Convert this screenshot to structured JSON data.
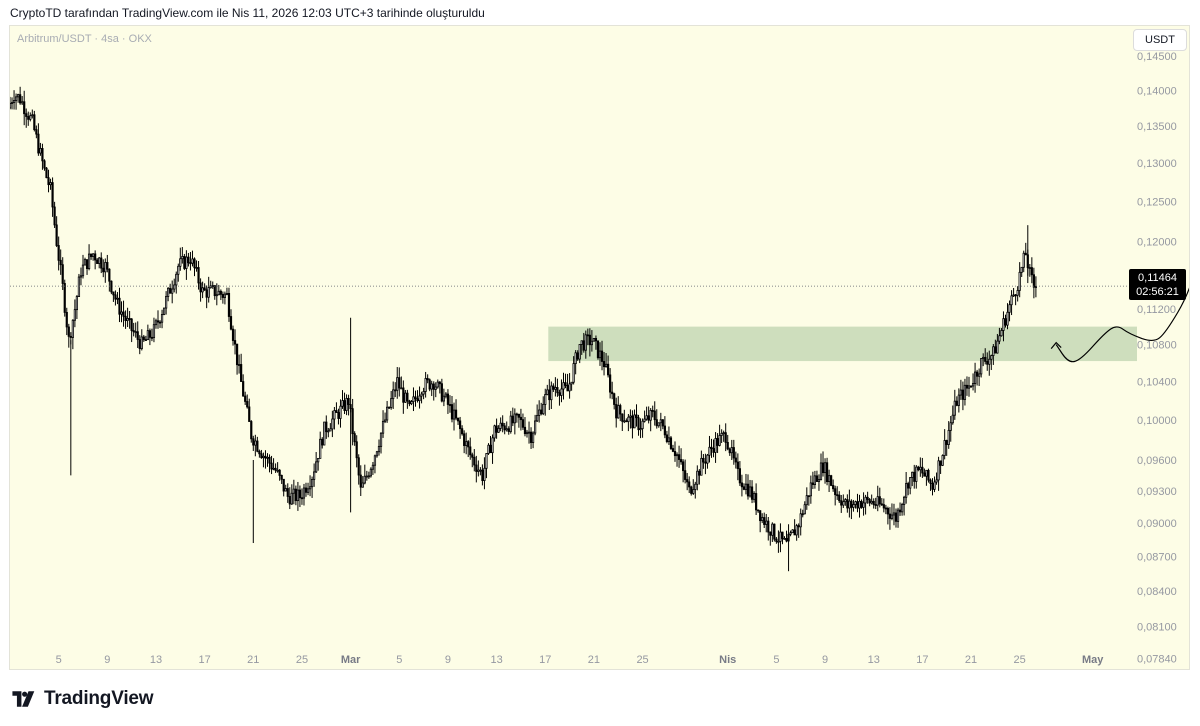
{
  "header": {
    "caption": "CryptoTD tarafından TradingView.com ile Nis 11, 2026 12:03 UTC+3 tarihinde oluşturuldu"
  },
  "symbol_line": "Arbitrum/USDT · 4sa · OKX",
  "currency_button": "USDT",
  "price_tag": {
    "price": "0,11464",
    "countdown": "02:56:21"
  },
  "footer": {
    "brand": "TradingView",
    "logo_icon": "tradingview-logo-icon"
  },
  "colors": {
    "background": "#fdfde6",
    "candle": "#000000",
    "zone": "#cbdcbb",
    "text": "#131722"
  },
  "chart_data": {
    "type": "candlestick",
    "title": "Arbitrum/USDT · 4sa · OKX",
    "y_axis": {
      "scale": "log",
      "ticks": [
        0.145,
        0.14,
        0.135,
        0.13,
        0.125,
        0.12,
        0.116,
        0.112,
        0.108,
        0.104,
        0.1,
        0.096,
        0.093,
        0.09,
        0.087,
        0.084,
        0.081,
        0.0784
      ],
      "labels": [
        "0,14500",
        "0,14000",
        "0,13500",
        "0,13000",
        "0,12500",
        "0,12000",
        "0,11600",
        "0,11200",
        "0,10800",
        "0,10400",
        "0,10000",
        "0,09600",
        "0,09300",
        "0,09000",
        "0,08700",
        "0,08400",
        "0,08100",
        "0,07840"
      ],
      "range": [
        0.0774,
        0.1495
      ]
    },
    "x_axis": {
      "labels": [
        {
          "text": "5",
          "date": "2026-02-05",
          "bold": false
        },
        {
          "text": "9",
          "date": "2026-02-09",
          "bold": false
        },
        {
          "text": "13",
          "date": "2026-02-13",
          "bold": false
        },
        {
          "text": "17",
          "date": "2026-02-17",
          "bold": false
        },
        {
          "text": "21",
          "date": "2026-02-21",
          "bold": false
        },
        {
          "text": "25",
          "date": "2026-02-25",
          "bold": false
        },
        {
          "text": "Mar",
          "date": "2026-03-01",
          "bold": true
        },
        {
          "text": "5",
          "date": "2026-03-05",
          "bold": false
        },
        {
          "text": "9",
          "date": "2026-03-09",
          "bold": false
        },
        {
          "text": "13",
          "date": "2026-03-13",
          "bold": false
        },
        {
          "text": "17",
          "date": "2026-03-17",
          "bold": false
        },
        {
          "text": "21",
          "date": "2026-03-21",
          "bold": false
        },
        {
          "text": "25",
          "date": "2026-03-25",
          "bold": false
        },
        {
          "text": "Nis",
          "date": "2026-04-01",
          "bold": true
        },
        {
          "text": "5",
          "date": "2026-04-05",
          "bold": false
        },
        {
          "text": "9",
          "date": "2026-04-09",
          "bold": false
        },
        {
          "text": "13",
          "date": "2026-04-13",
          "bold": false
        },
        {
          "text": "17",
          "date": "2026-04-17",
          "bold": false
        },
        {
          "text": "21",
          "date": "2026-04-21",
          "bold": false
        },
        {
          "text": "25",
          "date": "2026-04-25",
          "bold": false
        },
        {
          "text": "May",
          "date": "2026-05-01",
          "bold": true
        }
      ],
      "range": [
        "2026-02-01",
        "2026-05-03"
      ]
    },
    "price_path": [
      [
        "2026-02-01",
        0.1375
      ],
      [
        "2026-02-01T12:00",
        0.1395
      ],
      [
        "2026-02-02",
        0.1388
      ],
      [
        "2026-02-03",
        0.1355
      ],
      [
        "2026-02-04",
        0.129
      ],
      [
        "2026-02-04T12:00",
        0.1265
      ],
      [
        "2026-02-05",
        0.12
      ],
      [
        "2026-02-05T12:00",
        0.1145
      ],
      [
        "2026-02-06",
        0.1085
      ],
      [
        "2026-02-06T12:00",
        0.112
      ],
      [
        "2026-02-07",
        0.1165
      ],
      [
        "2026-02-08",
        0.1185
      ],
      [
        "2026-02-09",
        0.117
      ],
      [
        "2026-02-10",
        0.1125
      ],
      [
        "2026-02-11",
        0.11
      ],
      [
        "2026-02-12",
        0.108
      ],
      [
        "2026-02-13",
        0.1095
      ],
      [
        "2026-02-14",
        0.113
      ],
      [
        "2026-02-15",
        0.117
      ],
      [
        "2026-02-16",
        0.118
      ],
      [
        "2026-02-17",
        0.114
      ],
      [
        "2026-02-18",
        0.114
      ],
      [
        "2026-02-19",
        0.1135
      ],
      [
        "2026-02-20",
        0.105
      ],
      [
        "2026-02-21",
        0.0985
      ],
      [
        "2026-02-22",
        0.0965
      ],
      [
        "2026-02-23",
        0.095
      ],
      [
        "2026-02-24",
        0.0925
      ],
      [
        "2026-02-25",
        0.0925
      ],
      [
        "2026-02-26",
        0.0945
      ],
      [
        "2026-02-27",
        0.099
      ],
      [
        "2026-02-28",
        0.1005
      ],
      [
        "2026-03-01",
        0.102
      ],
      [
        "2026-03-02",
        0.093
      ],
      [
        "2026-03-03",
        0.096
      ],
      [
        "2026-03-04",
        0.1
      ],
      [
        "2026-03-05",
        0.104
      ],
      [
        "2026-03-06",
        0.101
      ],
      [
        "2026-03-07",
        0.1035
      ],
      [
        "2026-03-08",
        0.104
      ],
      [
        "2026-03-09",
        0.102
      ],
      [
        "2026-03-10",
        0.0995
      ],
      [
        "2026-03-11",
        0.0965
      ],
      [
        "2026-03-12",
        0.0945
      ],
      [
        "2026-03-13",
        0.099
      ],
      [
        "2026-03-14",
        0.0995
      ],
      [
        "2026-03-15",
        0.1
      ],
      [
        "2026-03-16",
        0.0985
      ],
      [
        "2026-03-17",
        0.102
      ],
      [
        "2026-03-18",
        0.1035
      ],
      [
        "2026-03-19",
        0.103
      ],
      [
        "2026-03-20",
        0.108
      ],
      [
        "2026-03-21",
        0.1085
      ],
      [
        "2026-03-22",
        0.106
      ],
      [
        "2026-03-23",
        0.101
      ],
      [
        "2026-03-24",
        0.1
      ],
      [
        "2026-03-25",
        0.0995
      ],
      [
        "2026-03-26",
        0.1005
      ],
      [
        "2026-03-27",
        0.099
      ],
      [
        "2026-03-28",
        0.0965
      ],
      [
        "2026-03-29",
        0.093
      ],
      [
        "2026-03-30",
        0.0955
      ],
      [
        "2026-03-31",
        0.0975
      ],
      [
        "2026-04-01",
        0.0985
      ],
      [
        "2026-04-02",
        0.0945
      ],
      [
        "2026-04-03",
        0.093
      ],
      [
        "2026-04-04",
        0.0905
      ],
      [
        "2026-04-05",
        0.089
      ],
      [
        "2026-04-06",
        0.088
      ],
      [
        "2026-04-07",
        0.09
      ],
      [
        "2026-04-08",
        0.0935
      ],
      [
        "2026-04-09",
        0.0955
      ],
      [
        "2026-04-10",
        0.093
      ],
      [
        "2026-04-11",
        0.0915
      ],
      [
        "2026-04-12",
        0.092
      ],
      [
        "2026-04-13",
        0.092
      ],
      [
        "2026-04-14",
        0.0915
      ],
      [
        "2026-04-15",
        0.0905
      ],
      [
        "2026-04-16",
        0.094
      ],
      [
        "2026-04-17",
        0.095
      ],
      [
        "2026-04-18",
        0.0935
      ],
      [
        "2026-04-19",
        0.0975
      ],
      [
        "2026-04-20",
        0.102
      ],
      [
        "2026-04-21",
        0.1035
      ],
      [
        "2026-04-22",
        0.106
      ],
      [
        "2026-04-23",
        0.107
      ],
      [
        "2026-04-24",
        0.111
      ],
      [
        "2026-04-25",
        0.115
      ],
      [
        "2026-04-25T16:00",
        0.1185
      ],
      [
        "2026-04-26",
        0.116
      ],
      [
        "2026-04-26T08:00",
        0.1146
      ]
    ],
    "extreme_wicks": [
      [
        "2026-02-06",
        0.0945,
        0.1085
      ],
      [
        "2026-02-21",
        0.0882,
        0.096
      ],
      [
        "2026-03-01",
        0.091,
        0.111
      ],
      [
        "2026-04-06",
        0.0857,
        0.089
      ],
      [
        "2026-04-25T16:00",
        0.115,
        0.122
      ]
    ],
    "last_price": 0.11464,
    "countdown": "02:56:21",
    "demand_zone": {
      "low": 0.1062,
      "high": 0.11,
      "start": "2026-03-17T06:00"
    },
    "projection_path": [
      [
        "2026-04-28",
        0.108
      ],
      [
        "2026-04-29",
        0.106
      ],
      [
        "2026-04-30",
        0.1063
      ],
      [
        "2026-05-02",
        0.1093
      ],
      [
        "2026-05-03",
        0.1102
      ],
      [
        "2026-05-04",
        0.1092
      ],
      [
        "2026-05-06",
        0.1082
      ],
      [
        "2026-05-07",
        0.1093
      ],
      [
        "2026-05-09",
        0.114
      ],
      [
        "2026-05-10",
        0.12
      ],
      [
        "2026-05-11",
        0.1265
      ],
      [
        "2026-05-11T16:00",
        0.1293
      ]
    ],
    "projection_start_arrow": [
      "2026-04-28",
      0.108
    ],
    "projection_end_arrow": [
      "2026-05-11T16:00",
      0.1293
    ],
    "grid": false,
    "legend": "none"
  }
}
